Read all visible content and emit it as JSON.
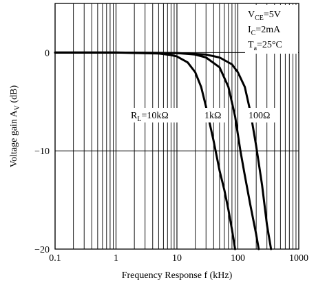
{
  "chart_data": {
    "type": "line",
    "xscale": "log",
    "xlim": [
      0.1,
      1000
    ],
    "ylim": [
      -20,
      5
    ],
    "xlabel": "Frequency Response f (kHz)",
    "ylabel": {
      "main": "Voltage gain A",
      "sub": "V",
      "unit": " (dB)"
    },
    "x_ticks": [
      {
        "value": 0.1,
        "label": "0.1"
      },
      {
        "value": 1,
        "label": "1"
      },
      {
        "value": 10,
        "label": "10"
      },
      {
        "value": 100,
        "label": "100"
      },
      {
        "value": 1000,
        "label": "1000"
      }
    ],
    "y_ticks": [
      {
        "value": 0,
        "label": "0"
      },
      {
        "value": -10,
        "label": "−10"
      },
      {
        "value": -20,
        "label": "−20"
      }
    ],
    "grid": {
      "x": "log-minor",
      "y": "major"
    },
    "conditions": [
      {
        "main": "V",
        "sub": "CE",
        "rest": "=5V"
      },
      {
        "main": "I",
        "sub": "C",
        "rest": "=2mA"
      },
      {
        "main": "T",
        "sub": "a",
        "rest": "=25°C"
      }
    ],
    "series": [
      {
        "name": "R_L=10kΩ",
        "label": {
          "main": "R",
          "sub": "L",
          "rest": "=10kΩ"
        },
        "points": [
          [
            0.1,
            0
          ],
          [
            1,
            0
          ],
          [
            5,
            -0.1
          ],
          [
            8,
            -0.25
          ],
          [
            10,
            -0.4
          ],
          [
            15,
            -1.0
          ],
          [
            20,
            -2.0
          ],
          [
            25,
            -3.5
          ],
          [
            30,
            -5.5
          ],
          [
            40,
            -9
          ],
          [
            50,
            -12
          ],
          [
            60,
            -14
          ],
          [
            70,
            -16
          ],
          [
            80,
            -18
          ],
          [
            90,
            -20
          ]
        ]
      },
      {
        "name": "1kΩ",
        "label": {
          "main": "",
          "sub": "",
          "rest": "1kΩ"
        },
        "points": [
          [
            0.1,
            0
          ],
          [
            1,
            0
          ],
          [
            10,
            -0.05
          ],
          [
            20,
            -0.2
          ],
          [
            30,
            -0.5
          ],
          [
            50,
            -1.5
          ],
          [
            70,
            -3.5
          ],
          [
            90,
            -6.5
          ],
          [
            110,
            -10
          ],
          [
            130,
            -12.5
          ],
          [
            160,
            -15.5
          ],
          [
            200,
            -18.5
          ],
          [
            220,
            -20
          ]
        ]
      },
      {
        "name": "100Ω",
        "label": {
          "main": "",
          "sub": "",
          "rest": "100Ω"
        },
        "points": [
          [
            0.1,
            0
          ],
          [
            1,
            0
          ],
          [
            10,
            -0.05
          ],
          [
            30,
            -0.2
          ],
          [
            50,
            -0.5
          ],
          [
            80,
            -1.2
          ],
          [
            100,
            -2
          ],
          [
            130,
            -3.5
          ],
          [
            160,
            -6
          ],
          [
            200,
            -9.5
          ],
          [
            250,
            -13.5
          ],
          [
            300,
            -17.5
          ],
          [
            350,
            -20
          ]
        ]
      }
    ]
  }
}
